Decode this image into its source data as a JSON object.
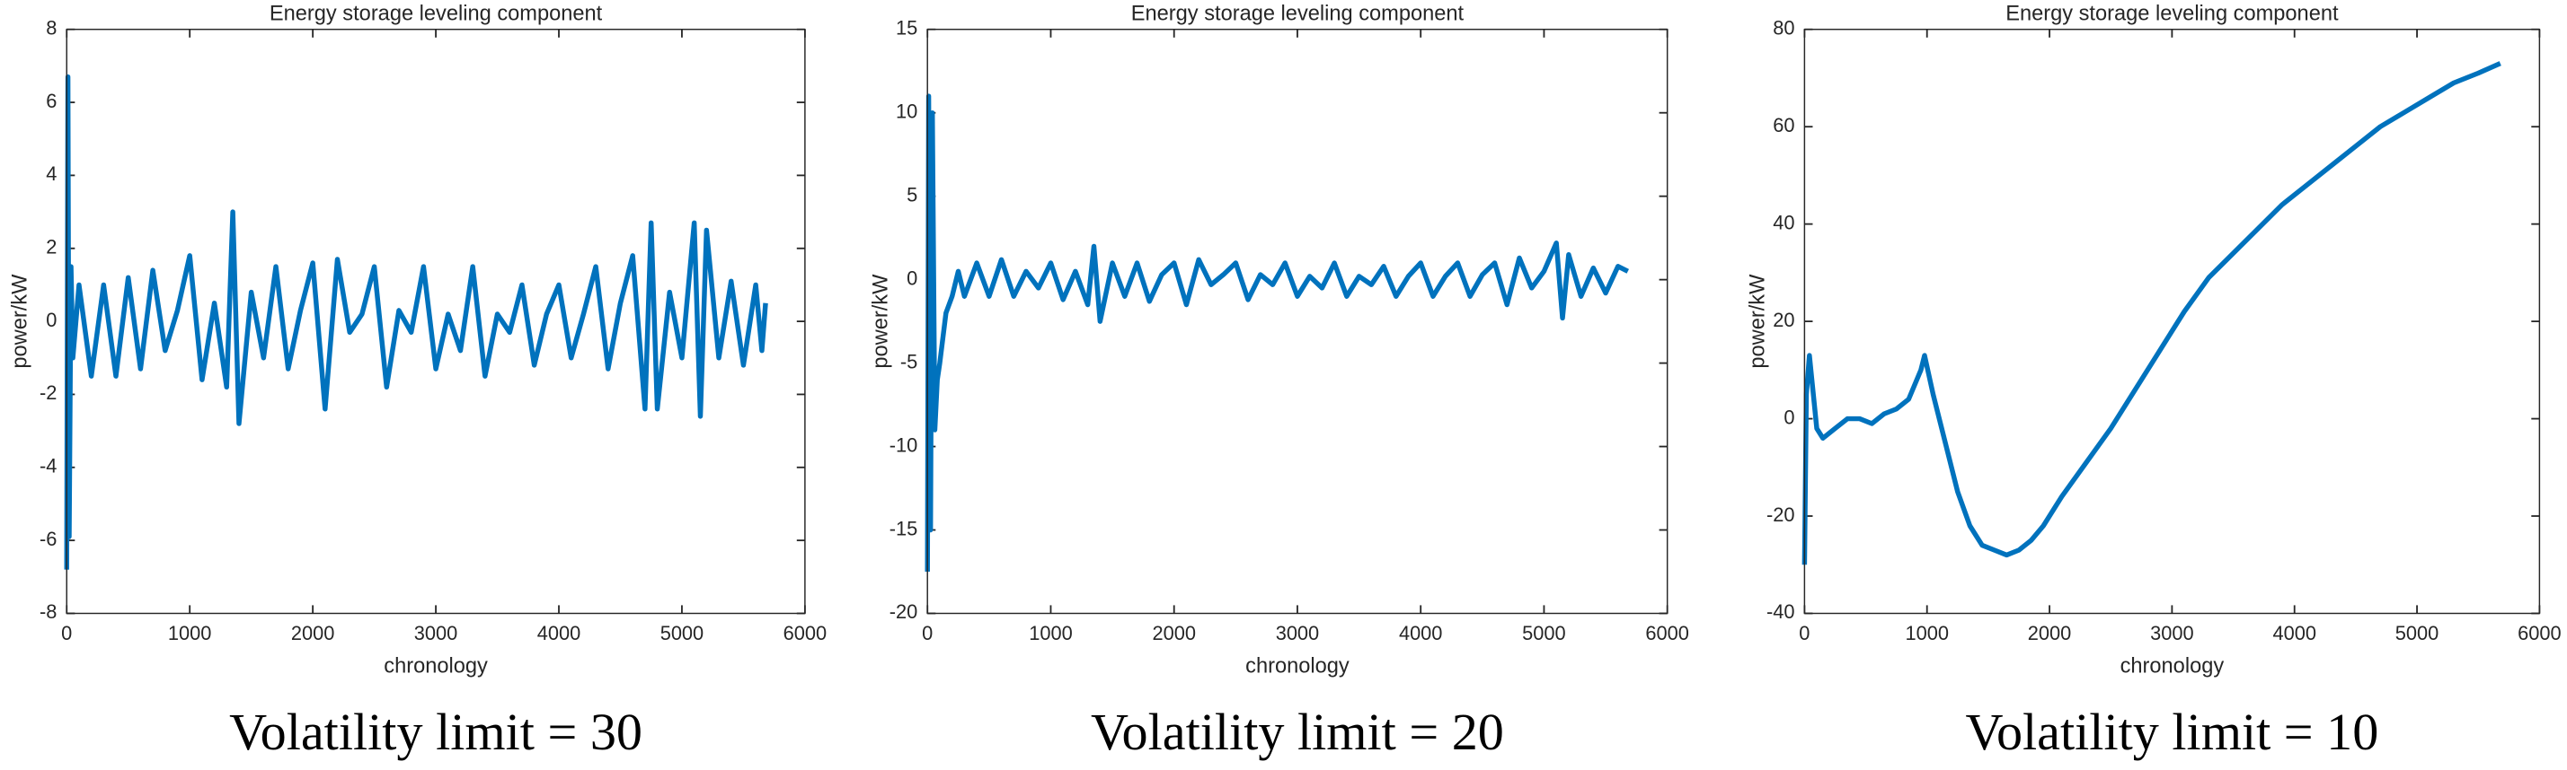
{
  "chart_data": [
    {
      "type": "line",
      "title": "Energy storage leveling component",
      "xlabel": "chronology",
      "ylabel": "power/kW",
      "caption": "Volatility limit = 30",
      "color": "#0072bd",
      "xlim": [
        0,
        6000
      ],
      "xticks": [
        0,
        1000,
        2000,
        3000,
        4000,
        5000,
        6000
      ],
      "ylim": [
        -8,
        8
      ],
      "yticks": [
        -8,
        -6,
        -4,
        -2,
        0,
        2,
        4,
        6,
        8
      ],
      "x": [
        0,
        10,
        20,
        35,
        50,
        100,
        200,
        300,
        400,
        500,
        600,
        700,
        800,
        900,
        1000,
        1100,
        1200,
        1300,
        1350,
        1400,
        1500,
        1600,
        1700,
        1800,
        1900,
        2000,
        2100,
        2200,
        2300,
        2400,
        2500,
        2600,
        2700,
        2800,
        2900,
        3000,
        3100,
        3200,
        3300,
        3400,
        3500,
        3600,
        3700,
        3800,
        3900,
        4000,
        4100,
        4200,
        4300,
        4400,
        4500,
        4600,
        4700,
        4750,
        4800,
        4900,
        5000,
        5100,
        5150,
        5200,
        5300,
        5400,
        5500,
        5600,
        5650,
        5680
      ],
      "values": [
        -6.8,
        6.7,
        -5.9,
        1.5,
        -1,
        1,
        -1.5,
        1,
        -1.5,
        1.2,
        -1.3,
        1.4,
        -0.8,
        0.3,
        1.8,
        -1.6,
        0.5,
        -1.8,
        3,
        -2.8,
        0.8,
        -1,
        1.5,
        -1.3,
        0.3,
        1.6,
        -2.4,
        1.7,
        -0.3,
        0.2,
        1.5,
        -1.8,
        0.3,
        -0.3,
        1.5,
        -1.3,
        0.2,
        -0.8,
        1.5,
        -1.5,
        0.2,
        -0.3,
        1,
        -1.2,
        0.2,
        1,
        -1,
        0.2,
        1.5,
        -1.3,
        0.5,
        1.8,
        -2.4,
        2.7,
        -2.4,
        0.8,
        -1,
        2.7,
        -2.6,
        2.5,
        -1,
        1.1,
        -1.2,
        1,
        -0.8,
        0.5
      ]
    },
    {
      "type": "line",
      "title": "Energy storage leveling component",
      "xlabel": "chronology",
      "ylabel": "power/kW",
      "caption": "Volatility limit = 20",
      "color": "#0072bd",
      "xlim": [
        0,
        6000
      ],
      "xticks": [
        0,
        1000,
        2000,
        3000,
        4000,
        5000,
        6000
      ],
      "ylim": [
        -20,
        15
      ],
      "yticks": [
        -20,
        -15,
        -10,
        -5,
        0,
        5,
        10,
        15
      ],
      "x": [
        0,
        10,
        25,
        40,
        60,
        80,
        100,
        150,
        200,
        250,
        300,
        400,
        500,
        600,
        700,
        800,
        900,
        1000,
        1100,
        1200,
        1300,
        1350,
        1400,
        1500,
        1600,
        1700,
        1800,
        1900,
        2000,
        2100,
        2200,
        2300,
        2400,
        2500,
        2600,
        2700,
        2800,
        2900,
        3000,
        3100,
        3200,
        3300,
        3400,
        3500,
        3600,
        3700,
        3800,
        3900,
        4000,
        4100,
        4200,
        4300,
        4400,
        4500,
        4600,
        4700,
        4800,
        4900,
        5000,
        5100,
        5150,
        5200,
        5300,
        5400,
        5500,
        5600,
        5680
      ],
      "values": [
        -17.5,
        11,
        -15,
        10,
        -9,
        -6,
        -5,
        -2,
        -1,
        0.5,
        -1,
        1,
        -1,
        1.2,
        -1,
        0.5,
        -0.5,
        1,
        -1.2,
        0.5,
        -1.5,
        2,
        -2.5,
        1,
        -1,
        1,
        -1.3,
        0.3,
        1,
        -1.5,
        1.2,
        -0.3,
        0.3,
        1,
        -1.2,
        0.3,
        -0.3,
        1,
        -1,
        0.2,
        -0.5,
        1,
        -1,
        0.2,
        -0.3,
        0.8,
        -1,
        0.2,
        1,
        -1,
        0.2,
        1,
        -1,
        0.3,
        1,
        -1.5,
        1.3,
        -0.5,
        0.5,
        2.2,
        -2.3,
        1.5,
        -1,
        0.7,
        -0.8,
        0.8,
        0.5
      ]
    },
    {
      "type": "line",
      "title": "Energy storage leveling component",
      "xlabel": "chronology",
      "ylabel": "power/kW",
      "caption": "Volatility limit = 10",
      "color": "#0072bd",
      "xlim": [
        0,
        6000
      ],
      "xticks": [
        0,
        1000,
        2000,
        3000,
        4000,
        5000,
        6000
      ],
      "ylim": [
        -40,
        80
      ],
      "yticks": [
        -40,
        -20,
        0,
        20,
        40,
        60,
        80
      ],
      "x": [
        0,
        15,
        40,
        60,
        100,
        150,
        250,
        350,
        450,
        550,
        650,
        750,
        850,
        950,
        980,
        1050,
        1150,
        1250,
        1350,
        1450,
        1550,
        1650,
        1750,
        1850,
        1950,
        2100,
        2300,
        2500,
        2700,
        2900,
        3100,
        3300,
        3500,
        3700,
        3900,
        4100,
        4300,
        4500,
        4700,
        4900,
        5100,
        5300,
        5500,
        5680
      ],
      "values": [
        -30,
        5,
        13,
        8,
        -2,
        -4,
        -2,
        0,
        0,
        -1,
        1,
        2,
        4,
        10,
        13,
        5,
        -5,
        -15,
        -22,
        -26,
        -27,
        -28,
        -27,
        -25,
        -22,
        -16,
        -9,
        -2,
        6,
        14,
        22,
        29,
        34,
        39,
        44,
        48,
        52,
        56,
        60,
        63,
        66,
        69,
        71,
        73
      ]
    }
  ]
}
